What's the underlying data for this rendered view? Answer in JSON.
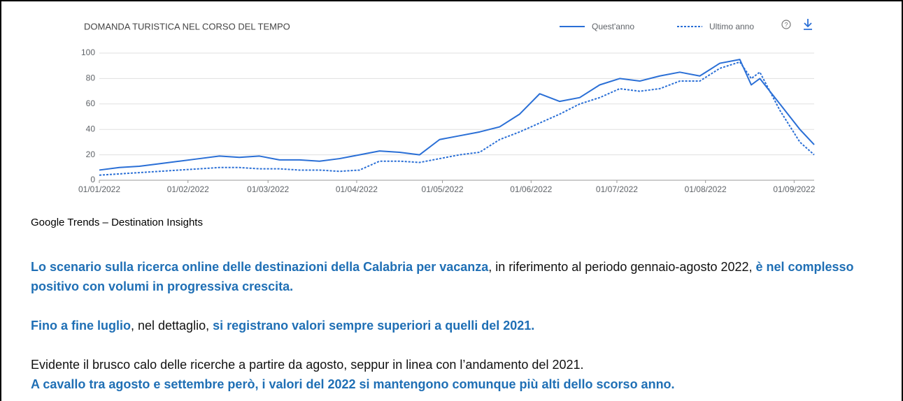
{
  "chart_data": {
    "type": "line",
    "title": "DOMANDA TURISTICA NEL CORSO DEL TEMPO",
    "x": [
      "2022-01-01",
      "2022-01-08",
      "2022-01-15",
      "2022-01-22",
      "2022-01-29",
      "2022-02-05",
      "2022-02-12",
      "2022-02-19",
      "2022-02-26",
      "2022-03-05",
      "2022-03-12",
      "2022-03-19",
      "2022-03-26",
      "2022-04-02",
      "2022-04-09",
      "2022-04-16",
      "2022-04-23",
      "2022-04-30",
      "2022-05-07",
      "2022-05-14",
      "2022-05-21",
      "2022-05-28",
      "2022-06-04",
      "2022-06-11",
      "2022-06-18",
      "2022-06-25",
      "2022-07-02",
      "2022-07-09",
      "2022-07-16",
      "2022-07-23",
      "2022-07-30",
      "2022-08-06",
      "2022-08-13",
      "2022-08-17",
      "2022-08-20",
      "2022-08-27",
      "2022-09-03",
      "2022-09-08"
    ],
    "series": [
      {
        "name": "Quest'anno",
        "color": "#2a6fd6",
        "dash": false,
        "values": [
          8,
          10,
          11,
          13,
          15,
          17,
          19,
          18,
          19,
          16,
          16,
          15,
          17,
          20,
          23,
          22,
          20,
          32,
          35,
          38,
          42,
          52,
          68,
          62,
          65,
          75,
          80,
          78,
          82,
          85,
          82,
          92,
          95,
          75,
          80,
          60,
          40,
          28
        ]
      },
      {
        "name": "Ultimo anno",
        "color": "#2a6fd6",
        "dash": true,
        "values": [
          4,
          5,
          6,
          7,
          8,
          9,
          10,
          10,
          9,
          9,
          8,
          8,
          7,
          8,
          15,
          15,
          14,
          17,
          20,
          22,
          32,
          38,
          45,
          52,
          60,
          65,
          72,
          70,
          72,
          78,
          78,
          88,
          93,
          80,
          85,
          55,
          30,
          20
        ]
      }
    ],
    "xlim": [
      "2022-01-01",
      "2022-09-08"
    ],
    "xticks": [
      {
        "value": "2022-01-01",
        "label": "01/01/2022"
      },
      {
        "value": "2022-02-01",
        "label": "01/02/2022"
      },
      {
        "value": "2022-03-01",
        "label": "01/03/2022"
      },
      {
        "value": "2022-04-01",
        "label": "01/04/2022"
      },
      {
        "value": "2022-05-01",
        "label": "01/05/2022"
      },
      {
        "value": "2022-06-01",
        "label": "01/06/2022"
      },
      {
        "value": "2022-07-01",
        "label": "01/07/2022"
      },
      {
        "value": "2022-08-01",
        "label": "01/08/2022"
      },
      {
        "value": "2022-09-01",
        "label": "01/09/2022"
      }
    ],
    "ylim": [
      0,
      100
    ],
    "yticks": [
      0,
      20,
      40,
      60,
      80,
      100
    ],
    "grid": true
  },
  "caption": "Google Trends – Destination Insights",
  "paragraphs": [
    [
      {
        "text": "Lo scenario sulla ricerca online delle destinazioni della Calabria per vacanza",
        "emphasis": true
      },
      {
        "text": ", in riferimento al periodo gennaio-agosto 2022, ",
        "emphasis": false
      },
      {
        "text": "è nel complesso positivo con volumi in progressiva crescita.",
        "emphasis": true
      }
    ],
    [
      {
        "text": "Fino a fine luglio",
        "emphasis": true
      },
      {
        "text": ", nel dettaglio, ",
        "emphasis": false
      },
      {
        "text": "si registrano valori sempre superiori a quelli del 2021.",
        "emphasis": true
      }
    ],
    [
      {
        "text": "Evidente il brusco calo delle ricerche a partire da agosto, seppur in linea con l’andamento del 2021.",
        "emphasis": false
      }
    ],
    [
      {
        "text": "A cavallo tra agosto e settembre però, i valori del 2022 si mantengono comunque più alti dello scorso anno.",
        "emphasis": true
      }
    ]
  ]
}
